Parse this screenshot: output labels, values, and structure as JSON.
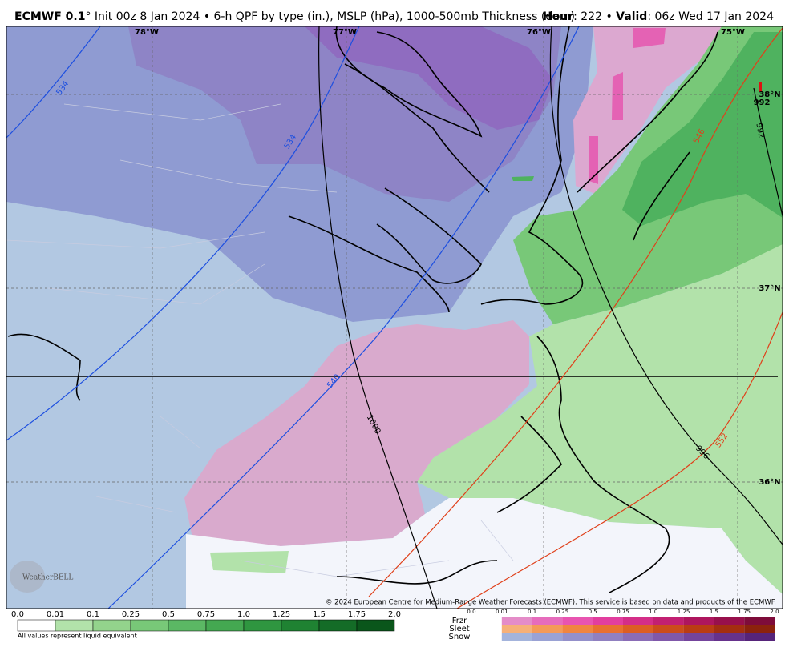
{
  "header": {
    "model": "ECMWF 0.1",
    "description": "° Init 00z 8 Jan 2024 • 6-h QPF by type (in.), MSLP (hPa), 1000-500mb Thickness (dam)",
    "hour_label": "Hour",
    "hour": ": 222 • ",
    "valid_label": "Valid",
    "valid": ": 06z Wed 17 Jan 2024"
  },
  "map": {
    "longitudes": [
      "78°W",
      "77°W",
      "76°W",
      "75°W"
    ],
    "latitudes": [
      "38°N",
      "37°N",
      "36°N"
    ],
    "thickness_labels": [
      "534",
      "534",
      "540",
      "546",
      "552"
    ],
    "pressure_labels": [
      "1000",
      "996",
      "992",
      "992"
    ],
    "copyright": "© 2024 European Centre for Medium-Range Weather Forecasts (ECMWF). This service is based on data and products of the ECMWF."
  },
  "logo": "WeatherBELL",
  "legend": {
    "rain_ticks": [
      "0.0",
      "0.01",
      "0.1",
      "0.25",
      "0.5",
      "0.75",
      "1.0",
      "1.25",
      "1.5",
      "1.75",
      "2.0"
    ],
    "note": "All values represent liquid equivalent",
    "types": [
      "Frzr",
      "Sleet",
      "Snow"
    ],
    "mix_ticks": [
      "0.0",
      "0.01",
      "0.1",
      "0.25",
      "0.5",
      "0.75",
      "1.0",
      "1.25",
      "1.5",
      "1.75",
      "2.0"
    ]
  }
}
